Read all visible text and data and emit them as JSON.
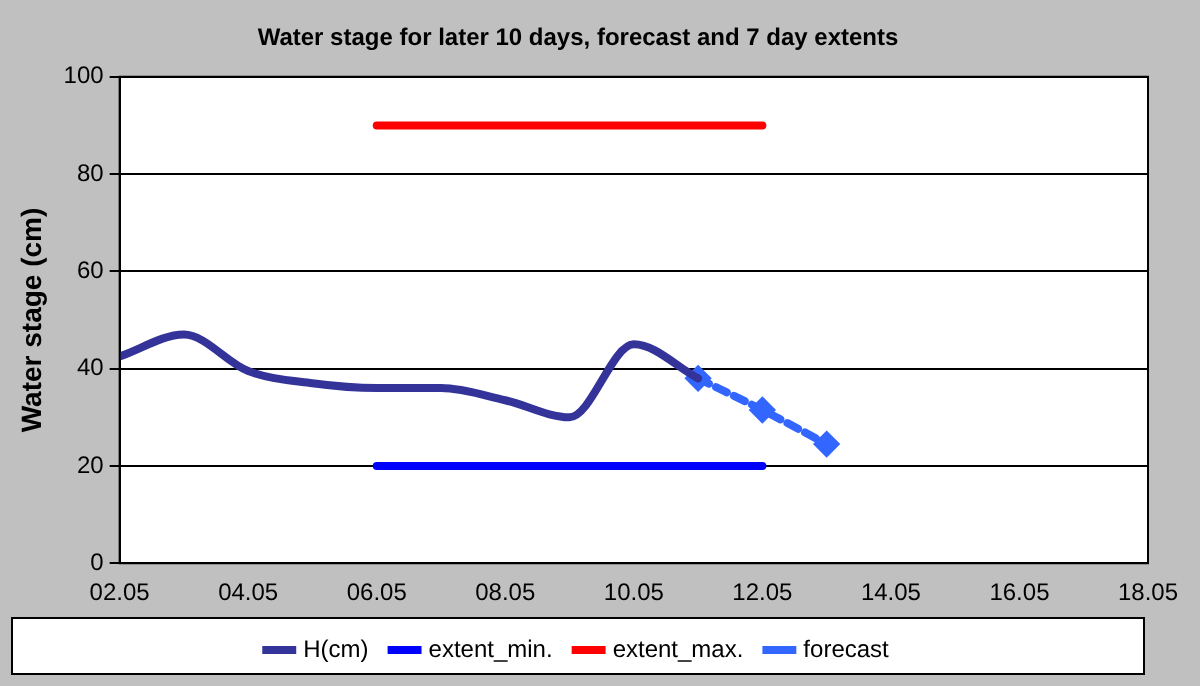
{
  "chart_data": {
    "type": "line",
    "title": "Water stage for later 10 days, forecast and 7 day extents",
    "ylabel": "Water stage (cm)",
    "x": [
      "--05-02",
      "--05-03",
      "--05-04",
      "--05-05",
      "--05-06",
      "--05-07",
      "--05-08",
      "--05-09",
      "--05-10",
      "--05-11"
    ],
    "series": [
      {
        "name": "H(cm)",
        "color": "#333399",
        "values": [
          42.5,
          47,
          39.5,
          37,
          36,
          36,
          33.5,
          30,
          45,
          38
        ]
      },
      {
        "name": "extent_min.",
        "color": "#0000ff",
        "x": [
          "--05-06",
          "--05-12"
        ],
        "values": [
          20,
          20
        ]
      },
      {
        "name": "extent_max.",
        "color": "#ff0000",
        "x": [
          "--05-06",
          "--05-12"
        ],
        "values": [
          90,
          90
        ]
      },
      {
        "name": "forecast",
        "color": "#3366ff",
        "x": [
          "--05-11",
          "--05-12",
          "--05-13"
        ],
        "values": [
          38,
          31.5,
          24.5
        ],
        "line_style": "dashed",
        "marker": "diamond"
      }
    ],
    "xlim": [
      "--05-02",
      "--05-18"
    ],
    "xticks": [
      {
        "value": "--05-02",
        "label": "02.05"
      },
      {
        "value": "--05-04",
        "label": "04.05"
      },
      {
        "value": "--05-06",
        "label": "06.05"
      },
      {
        "value": "--05-08",
        "label": "08.05"
      },
      {
        "value": "--05-10",
        "label": "10.05"
      },
      {
        "value": "--05-12",
        "label": "12.05"
      },
      {
        "value": "--05-14",
        "label": "14.05"
      },
      {
        "value": "--05-16",
        "label": "16.05"
      },
      {
        "value": "--05-18",
        "label": "18.05"
      }
    ],
    "ylim": [
      0,
      100
    ],
    "yticks": [
      0,
      20,
      40,
      60,
      80,
      100
    ],
    "grid": "y",
    "legend": "bottom",
    "marker": "none",
    "line_style": "solid"
  }
}
